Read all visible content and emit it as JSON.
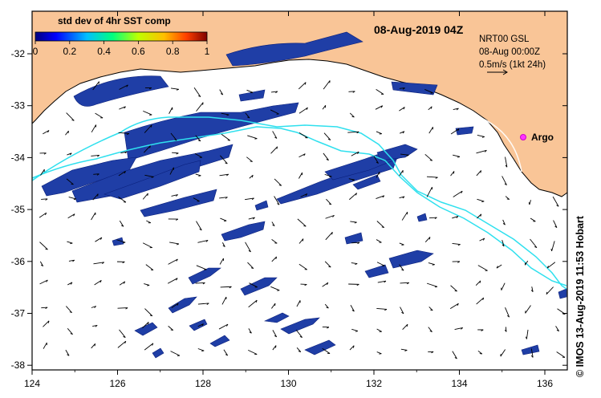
{
  "map": {
    "title": "08-Aug-2019 04Z",
    "colorbar": {
      "label": "std dev of 4hr SST comp",
      "ticks": [
        "0",
        "0.2",
        "0.4",
        "0.6",
        "0.8",
        "1"
      ],
      "colors": [
        "#00007f",
        "#0000ff",
        "#00bfff",
        "#00ff7f",
        "#bfff00",
        "#ffbf00",
        "#ff3f00",
        "#7f0000"
      ]
    },
    "legend": {
      "line1": "NRT00 GSL",
      "line2": "08-Aug 00:00Z",
      "line3": "0.5m/s (1kt 24h)"
    },
    "argo_label": "Argo",
    "credit": "© IMOS 13-Aug-2019 11:53 Hobart",
    "lon_ticks": [
      "124",
      "126",
      "128",
      "130",
      "132",
      "134",
      "136"
    ],
    "lat_ticks": [
      "-32",
      "-33",
      "-34",
      "-35",
      "-36",
      "-37",
      "-38"
    ],
    "colors": {
      "land": "#f9c597",
      "sst_patch": "#1f3ea6",
      "sst_patch_edge": "#0a1f7a",
      "track": "#2fe0ee",
      "argo": "#ff33ff",
      "arrow": "#000000"
    }
  }
}
